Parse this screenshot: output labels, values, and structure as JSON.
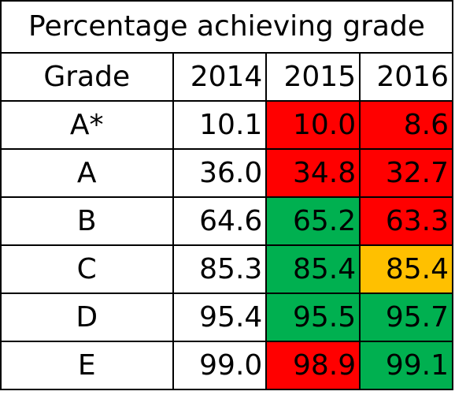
{
  "colors": {
    "red": "#FF0000",
    "green": "#00B050",
    "amber": "#FFC000",
    "none": "#FFFFFF"
  },
  "chart_data": {
    "type": "table",
    "title": "Percentage achieving grade",
    "columns": [
      "Grade",
      "2014",
      "2015",
      "2016"
    ],
    "rows": [
      {
        "grade": "A*",
        "values": [
          "10.1",
          "10.0",
          "8.6"
        ],
        "fills": [
          "none",
          "red",
          "red"
        ]
      },
      {
        "grade": "A",
        "values": [
          "36.0",
          "34.8",
          "32.7"
        ],
        "fills": [
          "none",
          "red",
          "red"
        ]
      },
      {
        "grade": "B",
        "values": [
          "64.6",
          "65.2",
          "63.3"
        ],
        "fills": [
          "none",
          "green",
          "red"
        ]
      },
      {
        "grade": "C",
        "values": [
          "85.3",
          "85.4",
          "85.4"
        ],
        "fills": [
          "none",
          "green",
          "amber"
        ]
      },
      {
        "grade": "D",
        "values": [
          "95.4",
          "95.5",
          "95.7"
        ],
        "fills": [
          "none",
          "green",
          "green"
        ]
      },
      {
        "grade": "E",
        "values": [
          "99.0",
          "98.9",
          "99.1"
        ],
        "fills": [
          "none",
          "red",
          "green"
        ]
      }
    ]
  }
}
